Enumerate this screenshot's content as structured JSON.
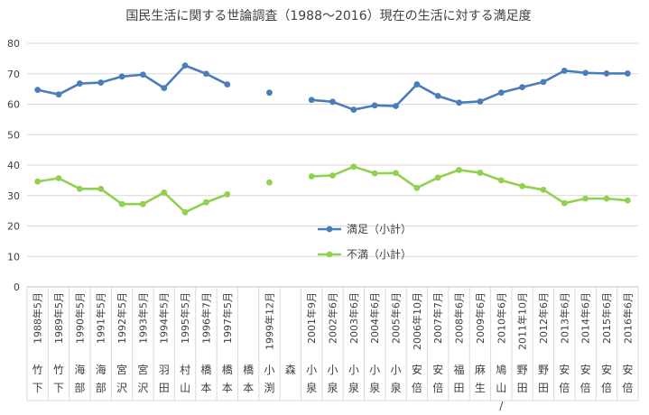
{
  "chart_data": {
    "type": "line",
    "title": "国民生活に関する世論調査（1988～2016）現在の生活に対する満足度",
    "xlabel": "",
    "ylabel": "",
    "ylim": [
      0,
      80
    ],
    "yticks": [
      "0",
      "10",
      "20",
      "30",
      "40",
      "50",
      "60",
      "70",
      "80"
    ],
    "grid": true,
    "legend_position": "center",
    "categories": [
      "1988年5月",
      "1989年5月",
      "1990年5月",
      "1991年5月",
      "1992年5月",
      "1993年5月",
      "1994年5月",
      "1995年5月",
      "1996年7月",
      "1997年5月",
      "",
      "1999年12月",
      "",
      "2001年9月",
      "2002年6月",
      "2003年6月",
      "2004年6月",
      "2005年6月",
      "2006年10月",
      "2007年7月",
      "2008年6月",
      "2009年6月",
      "2010年6月",
      "2011年10月",
      "2012年6月",
      "2013年6月",
      "2014年6月",
      "2015年6月",
      "2016年6月"
    ],
    "prime_ministers": [
      "竹下",
      "竹下",
      "海部",
      "海部",
      "宮沢",
      "宮沢",
      "羽田",
      "村山",
      "橋本",
      "橋本",
      "橋本",
      "小渕",
      "森",
      "小泉",
      "小泉",
      "小泉",
      "小泉",
      "小泉",
      "安倍",
      "安倍",
      "福田",
      "麻生",
      "鳩山/菅",
      "野田",
      "野田",
      "安倍",
      "安倍",
      "安倍",
      "安倍"
    ],
    "series": [
      {
        "name": "満足（小計）",
        "color": "#4a7ebb",
        "values": [
          64.7,
          63.2,
          66.8,
          67.1,
          69.1,
          69.7,
          65.3,
          72.7,
          70.0,
          66.5,
          null,
          63.8,
          null,
          61.4,
          60.8,
          58.2,
          59.6,
          59.4,
          66.5,
          62.7,
          60.5,
          60.9,
          63.8,
          65.6,
          67.3,
          71.0,
          70.3,
          70.1,
          70.1
        ]
      },
      {
        "name": "不満（小計）",
        "color": "#92d050",
        "values": [
          34.6,
          35.7,
          32.2,
          32.2,
          27.2,
          27.2,
          31.0,
          24.5,
          27.8,
          30.4,
          null,
          34.3,
          null,
          36.3,
          36.6,
          39.5,
          37.3,
          37.4,
          32.5,
          35.9,
          38.4,
          37.5,
          35.0,
          33.1,
          31.9,
          27.5,
          29.0,
          29.0,
          28.4
        ]
      }
    ]
  }
}
